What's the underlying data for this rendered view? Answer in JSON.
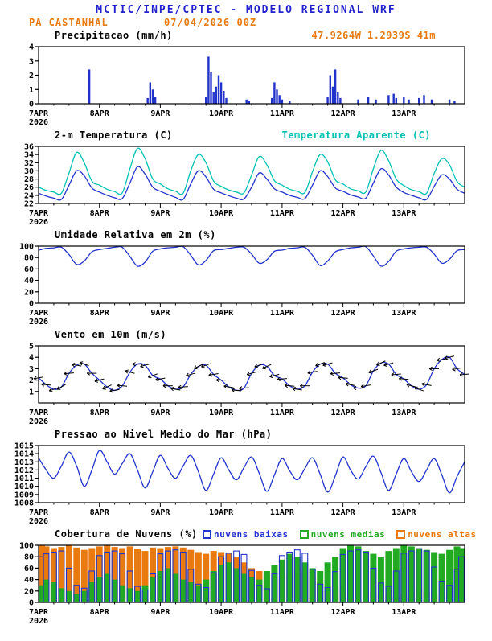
{
  "header": {
    "title": "MCTIC/INPE/CPTEC - MODELO REGIONAL WRF",
    "station": "PA CASTANHAL",
    "run": "07/04/2026 00Z",
    "location": "47.9264W 1.2939S 41m",
    "title_color": "#2222cc",
    "accent_color": "#e87a10"
  },
  "time_axis": {
    "start_label": "7APR",
    "start_year": "2026",
    "tick_labels": [
      "8APR",
      "9APR",
      "10APR",
      "11APR",
      "12APR",
      "13APR"
    ],
    "tick_hours": [
      24,
      48,
      72,
      96,
      120,
      144
    ],
    "hours_total": 168,
    "step_hours": 3,
    "minor_tick_hours": 6
  },
  "chart_data": [
    {
      "id": "precipitation",
      "type": "bar",
      "title": "Precipitacao (mm/h)",
      "ylabel": "mm/h",
      "ylim": [
        0,
        4
      ],
      "yticks": [
        0,
        1,
        2,
        3,
        4
      ],
      "bar_color": "#2233cc",
      "events": [
        [
          20,
          2.4
        ],
        [
          43,
          0.4
        ],
        [
          44,
          1.5
        ],
        [
          45,
          1.0
        ],
        [
          46,
          0.5
        ],
        [
          66,
          0.5
        ],
        [
          67,
          3.3
        ],
        [
          68,
          2.2
        ],
        [
          69,
          0.8
        ],
        [
          70,
          1.2
        ],
        [
          71,
          2.0
        ],
        [
          72,
          1.5
        ],
        [
          73,
          0.9
        ],
        [
          74,
          0.4
        ],
        [
          82,
          0.3
        ],
        [
          83,
          0.2
        ],
        [
          92,
          0.4
        ],
        [
          93,
          1.5
        ],
        [
          94,
          1.0
        ],
        [
          95,
          0.6
        ],
        [
          96,
          0.3
        ],
        [
          99,
          0.2
        ],
        [
          114,
          0.5
        ],
        [
          115,
          2.0
        ],
        [
          116,
          1.2
        ],
        [
          117,
          2.4
        ],
        [
          118,
          0.8
        ],
        [
          119,
          0.4
        ],
        [
          126,
          0.3
        ],
        [
          130,
          0.5
        ],
        [
          133,
          0.3
        ],
        [
          138,
          0.6
        ],
        [
          140,
          0.7
        ],
        [
          141,
          0.4
        ],
        [
          144,
          0.5
        ],
        [
          146,
          0.3
        ],
        [
          150,
          0.4
        ],
        [
          152,
          0.6
        ],
        [
          155,
          0.3
        ],
        [
          162,
          0.3
        ],
        [
          164,
          0.2
        ]
      ]
    },
    {
      "id": "temperature",
      "type": "line",
      "title": "2-m Temperatura (C)",
      "ylim": [
        22,
        36
      ],
      "yticks": [
        22,
        24,
        26,
        28,
        30,
        32,
        34,
        36
      ],
      "series": [
        {
          "name": "2-m Temperatura (C)",
          "color": "#2233cc",
          "values": [
            24.5,
            23.8,
            23.3,
            23.0,
            26.5,
            30.0,
            28.8,
            25.8,
            24.8,
            24.0,
            23.4,
            23.2,
            27.0,
            31.0,
            29.2,
            26.0,
            25.0,
            24.2,
            23.5,
            23.0,
            26.8,
            30.0,
            28.5,
            25.5,
            24.6,
            23.9,
            23.3,
            23.1,
            26.0,
            29.5,
            28.0,
            25.6,
            24.8,
            24.0,
            23.5,
            23.2,
            26.5,
            30.0,
            28.6,
            25.8,
            25.0,
            24.1,
            23.6,
            23.3,
            27.0,
            30.5,
            29.0,
            26.0,
            24.7,
            24.0,
            23.4,
            23.0,
            26.2,
            29.0,
            28.0,
            25.5,
            24.5
          ]
        },
        {
          "name": "Temperatura Aparente (C)",
          "color": "#00c2b2",
          "values": [
            26.0,
            25.2,
            24.8,
            24.5,
            29.5,
            34.5,
            32.0,
            27.5,
            26.5,
            25.5,
            24.9,
            24.6,
            30.5,
            35.5,
            33.0,
            28.0,
            26.8,
            25.6,
            25.0,
            24.5,
            30.0,
            34.0,
            32.0,
            27.5,
            26.2,
            25.3,
            24.8,
            24.6,
            29.0,
            33.5,
            31.5,
            27.6,
            26.5,
            25.5,
            25.0,
            24.7,
            29.8,
            34.0,
            32.2,
            27.8,
            26.8,
            25.6,
            25.1,
            24.8,
            30.5,
            35.0,
            32.5,
            28.0,
            26.4,
            25.4,
            24.9,
            24.5,
            29.4,
            33.0,
            31.5,
            27.4,
            26.0
          ]
        }
      ]
    },
    {
      "id": "humidity",
      "type": "line",
      "title": "Umidade Relativa em 2m (%)",
      "ylim": [
        0,
        100
      ],
      "yticks": [
        0,
        20,
        40,
        60,
        80,
        100
      ],
      "series": [
        {
          "name": "Umidade Relativa em 2m (%)",
          "color": "#2233cc",
          "values": [
            93,
            96,
            97,
            98,
            85,
            68,
            74,
            90,
            94,
            96,
            98,
            98,
            82,
            65,
            72,
            91,
            95,
            97,
            98,
            99,
            84,
            67,
            75,
            92,
            94,
            96,
            98,
            98,
            86,
            70,
            76,
            91,
            93,
            96,
            97,
            98,
            84,
            66,
            74,
            90,
            94,
            97,
            98,
            99,
            83,
            65,
            73,
            91,
            95,
            97,
            98,
            98,
            86,
            70,
            77,
            92,
            94
          ]
        }
      ]
    },
    {
      "id": "wind",
      "type": "wind",
      "title": "Vento em 10m (m/s)",
      "ylim": [
        0,
        5
      ],
      "yticks": [
        1,
        2,
        3,
        4,
        5
      ],
      "series": [
        {
          "name": "Vento em 10m (m/s)",
          "color": "#2233cc",
          "values": [
            2.2,
            1.6,
            1.2,
            1.4,
            2.6,
            3.3,
            3.4,
            2.6,
            2.0,
            1.4,
            1.1,
            1.5,
            2.7,
            3.4,
            3.3,
            2.4,
            2.1,
            1.5,
            1.2,
            1.4,
            2.5,
            3.2,
            3.3,
            2.5,
            2.0,
            1.4,
            1.1,
            1.3,
            2.6,
            3.3,
            3.2,
            2.4,
            2.1,
            1.5,
            1.2,
            1.5,
            2.7,
            3.4,
            3.4,
            2.6,
            2.2,
            1.6,
            1.3,
            1.5,
            2.8,
            3.5,
            3.4,
            2.5,
            2.1,
            1.5,
            1.2,
            1.6,
            3.0,
            3.8,
            4.0,
            3.0,
            2.5
          ]
        }
      ],
      "directions": [
        170,
        185,
        160,
        150,
        175,
        190,
        200,
        180,
        165,
        155,
        170,
        185,
        195,
        180,
        165,
        160,
        170,
        180,
        190,
        175,
        165,
        155,
        160,
        170,
        180,
        190,
        185,
        175,
        165,
        160,
        155,
        165,
        175,
        185,
        190,
        180,
        170,
        160,
        165,
        175,
        185,
        190,
        180,
        170,
        160,
        155,
        165,
        175,
        185,
        195,
        200,
        190,
        180,
        170,
        165,
        170,
        175
      ]
    },
    {
      "id": "pressure",
      "type": "line",
      "title": "Pressao ao Nivel Medio do Mar (hPa)",
      "ylim": [
        1008,
        1015
      ],
      "yticks": [
        1008,
        1009,
        1010,
        1011,
        1012,
        1013,
        1014,
        1015
      ],
      "series": [
        {
          "name": "Pressao ao Nivel Medio do Mar (hPa)",
          "color": "#2233cc",
          "values": [
            1013.5,
            1012.0,
            1011.0,
            1012.5,
            1014.2,
            1012.5,
            1010.0,
            1012.0,
            1014.4,
            1013.0,
            1011.5,
            1012.8,
            1014.0,
            1012.0,
            1009.8,
            1011.8,
            1013.8,
            1012.2,
            1011.0,
            1012.5,
            1013.8,
            1011.8,
            1009.5,
            1011.5,
            1013.5,
            1012.0,
            1010.8,
            1012.3,
            1013.6,
            1011.6,
            1009.4,
            1011.4,
            1013.4,
            1011.9,
            1010.8,
            1012.2,
            1013.5,
            1011.5,
            1009.3,
            1011.3,
            1013.6,
            1012.0,
            1010.9,
            1012.4,
            1013.7,
            1011.7,
            1009.5,
            1011.5,
            1013.4,
            1011.8,
            1010.6,
            1012.0,
            1013.4,
            1011.4,
            1009.2,
            1011.2,
            1013.0
          ]
        }
      ]
    },
    {
      "id": "clouds",
      "type": "cloud-bars",
      "title": "Cobertura de Nuvens (%)",
      "ylim": [
        0,
        100
      ],
      "yticks": [
        0,
        20,
        40,
        60,
        80,
        100
      ],
      "series": [
        {
          "name": "nuvens baixas",
          "color": "#2233cc",
          "render": "outline",
          "values": [
            80,
            85,
            88,
            90,
            60,
            30,
            25,
            55,
            82,
            88,
            90,
            85,
            55,
            28,
            22,
            50,
            85,
            90,
            92,
            88,
            58,
            32,
            26,
            52,
            80,
            86,
            90,
            84,
            56,
            30,
            24,
            50,
            82,
            88,
            92,
            86,
            58,
            32,
            26,
            54,
            84,
            90,
            92,
            88,
            60,
            34,
            28,
            55,
            86,
            90,
            94,
            90,
            62,
            36,
            30,
            58,
            80
          ]
        },
        {
          "name": "nuvens medias",
          "color": "#22aa22",
          "render": "fill",
          "values": [
            30,
            40,
            35,
            25,
            20,
            15,
            20,
            35,
            45,
            50,
            40,
            30,
            25,
            20,
            30,
            45,
            55,
            60,
            50,
            40,
            35,
            30,
            40,
            55,
            65,
            70,
            60,
            50,
            45,
            40,
            55,
            65,
            75,
            85,
            80,
            70,
            60,
            55,
            70,
            80,
            95,
            100,
            98,
            90,
            85,
            80,
            90,
            95,
            100,
            98,
            95,
            92,
            88,
            85,
            92,
            98,
            95
          ]
        },
        {
          "name": "nuvens altas",
          "color": "#e87a10",
          "render": "fill",
          "values": [
            100,
            98,
            95,
            97,
            100,
            96,
            92,
            95,
            98,
            100,
            97,
            95,
            98,
            94,
            90,
            96,
            95,
            97,
            98,
            96,
            92,
            88,
            85,
            90,
            88,
            85,
            80,
            70,
            60,
            55,
            50,
            45,
            40,
            50,
            60,
            55,
            45,
            35,
            30,
            25,
            20,
            25,
            30,
            22,
            18,
            15,
            12,
            10,
            15,
            20,
            25,
            18,
            12,
            10,
            8,
            12,
            10
          ]
        }
      ]
    }
  ]
}
